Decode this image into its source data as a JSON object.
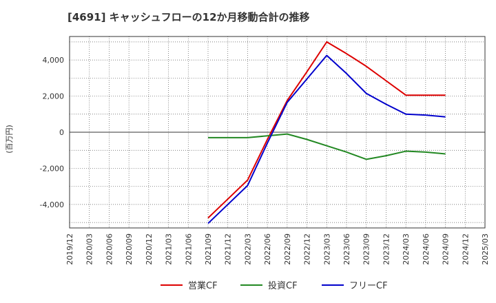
{
  "chart_data": {
    "type": "line",
    "title": "[4691]  キャッシュフローの12か月移動合計の推移",
    "ylabel": "(百万円)",
    "xlabel": "",
    "ylim": [
      -5300,
      5300
    ],
    "yticks": [
      4000,
      2000,
      0,
      -2000,
      -4000
    ],
    "ytick_labels": [
      "4,000",
      "2,000",
      "0",
      "-2,000",
      "-4,000"
    ],
    "categories": [
      "2019/12",
      "2020/03",
      "2020/06",
      "2020/09",
      "2020/12",
      "2021/03",
      "2021/06",
      "2021/09",
      "2021/12",
      "2022/03",
      "2022/06",
      "2022/09",
      "2022/12",
      "2023/03",
      "2023/06",
      "2023/09",
      "2023/12",
      "2024/03",
      "2024/06",
      "2024/09",
      "2024/12",
      "2025/03"
    ],
    "grid": true,
    "legend_position": "bottom",
    "series": [
      {
        "name": "営業CF",
        "color": "#dd0000",
        "values": [
          null,
          null,
          null,
          null,
          null,
          null,
          null,
          -4750,
          -3700,
          -2650,
          -400,
          1750,
          3350,
          5000,
          4350,
          3650,
          2850,
          2050,
          2050,
          2050,
          null,
          null
        ]
      },
      {
        "name": "投資CF",
        "color": "#228822",
        "values": [
          null,
          null,
          null,
          null,
          null,
          null,
          null,
          -300,
          -300,
          -300,
          -200,
          -100,
          -400,
          -750,
          -1100,
          -1500,
          -1300,
          -1050,
          -1100,
          -1200,
          null,
          null
        ]
      },
      {
        "name": "フリーCF",
        "color": "#0000cc",
        "values": [
          null,
          null,
          null,
          null,
          null,
          null,
          null,
          -5050,
          -4000,
          -2950,
          -600,
          1650,
          2950,
          4250,
          3250,
          2150,
          1550,
          1000,
          950,
          850,
          null,
          null
        ]
      }
    ]
  }
}
